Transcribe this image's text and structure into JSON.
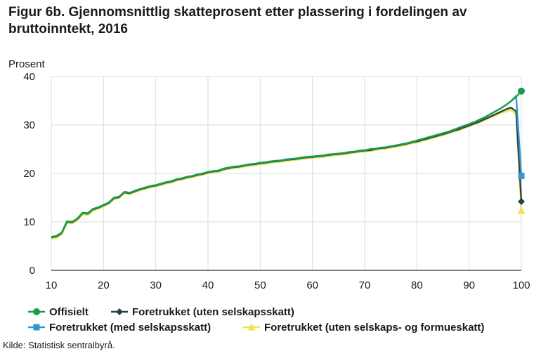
{
  "title": "Figur 6b. Gjennomsnittlig skatteprosent etter plassering i fordelingen av bruttoinntekt, 2016",
  "source": "Kilde: Statistisk sentralbyrå.",
  "chart_data": {
    "type": "line",
    "title": "Figur 6b. Gjennomsnittlig skatteprosent etter plassering i fordelingen av bruttoinntekt, 2016",
    "xlabel": "",
    "ylabel": "Prosent",
    "xlim": [
      10,
      100
    ],
    "ylim": [
      0,
      40
    ],
    "xticks": [
      10,
      20,
      30,
      40,
      50,
      60,
      70,
      80,
      90,
      100
    ],
    "yticks": [
      0,
      10,
      20,
      30,
      40
    ],
    "grid": true,
    "legend_position": "bottom",
    "x": [
      10,
      11,
      12,
      13,
      14,
      15,
      16,
      17,
      18,
      19,
      20,
      21,
      22,
      23,
      24,
      25,
      26,
      27,
      28,
      29,
      30,
      31,
      32,
      33,
      34,
      35,
      36,
      37,
      38,
      39,
      40,
      41,
      42,
      43,
      44,
      45,
      46,
      47,
      48,
      49,
      50,
      51,
      52,
      53,
      54,
      55,
      56,
      57,
      58,
      59,
      60,
      61,
      62,
      63,
      64,
      65,
      66,
      67,
      68,
      69,
      70,
      71,
      72,
      73,
      74,
      75,
      76,
      77,
      78,
      79,
      80,
      81,
      82,
      83,
      84,
      85,
      86,
      87,
      88,
      89,
      90,
      91,
      92,
      93,
      94,
      95,
      96,
      97,
      98,
      99,
      100
    ],
    "series": [
      {
        "name": "Offisielt",
        "color": "#1a9d49",
        "marker": "circle",
        "values": [
          6.9,
          7.1,
          7.8,
          10.1,
          10.0,
          10.7,
          11.9,
          11.8,
          12.7,
          13.0,
          13.5,
          14.0,
          15.0,
          15.2,
          16.2,
          16.0,
          16.4,
          16.8,
          17.1,
          17.4,
          17.6,
          17.9,
          18.2,
          18.4,
          18.8,
          19.0,
          19.3,
          19.5,
          19.8,
          20.0,
          20.3,
          20.5,
          20.6,
          21.0,
          21.2,
          21.4,
          21.5,
          21.7,
          21.9,
          22.0,
          22.2,
          22.3,
          22.5,
          22.6,
          22.7,
          22.9,
          23.0,
          23.1,
          23.3,
          23.4,
          23.5,
          23.6,
          23.7,
          23.9,
          24.0,
          24.1,
          24.2,
          24.4,
          24.5,
          24.7,
          24.8,
          25.0,
          25.1,
          25.3,
          25.4,
          25.6,
          25.8,
          26.0,
          26.2,
          26.5,
          26.8,
          27.1,
          27.4,
          27.7,
          28.0,
          28.3,
          28.6,
          29.0,
          29.4,
          29.8,
          30.2,
          30.6,
          31.1,
          31.6,
          32.2,
          32.8,
          33.4,
          34.1,
          34.9,
          35.8,
          37.0
        ]
      },
      {
        "name": "Foretrukket (uten selskapsskatt)",
        "color": "#274247",
        "marker": "diamond",
        "values": [
          6.8,
          7.0,
          7.7,
          10.0,
          9.9,
          10.6,
          11.8,
          11.7,
          12.6,
          12.9,
          13.4,
          13.9,
          14.9,
          15.1,
          16.1,
          15.9,
          16.3,
          16.7,
          17.0,
          17.3,
          17.5,
          17.8,
          18.1,
          18.3,
          18.7,
          18.9,
          19.2,
          19.4,
          19.7,
          19.9,
          20.2,
          20.4,
          20.5,
          20.9,
          21.1,
          21.3,
          21.4,
          21.6,
          21.8,
          21.9,
          22.1,
          22.2,
          22.4,
          22.5,
          22.6,
          22.8,
          22.9,
          23.0,
          23.2,
          23.3,
          23.4,
          23.5,
          23.6,
          23.8,
          23.9,
          24.0,
          24.1,
          24.3,
          24.4,
          24.6,
          24.7,
          24.8,
          25.0,
          25.2,
          25.3,
          25.5,
          25.7,
          25.9,
          26.1,
          26.4,
          26.6,
          26.9,
          27.2,
          27.5,
          27.8,
          28.1,
          28.4,
          28.8,
          29.1,
          29.5,
          29.9,
          30.3,
          30.7,
          31.2,
          31.7,
          32.2,
          32.7,
          33.2,
          33.6,
          32.8,
          14.2
        ]
      },
      {
        "name": "Foretrukket (med selskapsskatt)",
        "color": "#3396d2",
        "marker": "square",
        "values": [
          6.9,
          7.1,
          7.8,
          10.1,
          10.0,
          10.7,
          11.9,
          11.8,
          12.7,
          13.0,
          13.5,
          14.0,
          15.0,
          15.2,
          16.2,
          16.0,
          16.4,
          16.8,
          17.1,
          17.4,
          17.6,
          17.9,
          18.2,
          18.4,
          18.8,
          19.0,
          19.3,
          19.5,
          19.8,
          20.0,
          20.3,
          20.5,
          20.6,
          21.0,
          21.2,
          21.4,
          21.5,
          21.7,
          21.9,
          22.0,
          22.2,
          22.3,
          22.5,
          22.6,
          22.7,
          22.9,
          23.0,
          23.1,
          23.3,
          23.4,
          23.5,
          23.6,
          23.7,
          23.9,
          24.0,
          24.1,
          24.2,
          24.4,
          24.5,
          24.7,
          24.8,
          25.0,
          25.1,
          25.3,
          25.4,
          25.6,
          25.8,
          26.0,
          26.2,
          26.5,
          26.8,
          27.1,
          27.4,
          27.7,
          28.0,
          28.3,
          28.6,
          29.0,
          29.4,
          29.8,
          30.2,
          30.6,
          31.1,
          31.6,
          32.2,
          32.8,
          33.4,
          34.1,
          34.9,
          36.0,
          19.5
        ]
      },
      {
        "name": "Foretrukket (uten selskaps- og formueskatt)",
        "color": "#f2e34c",
        "marker": "triangle",
        "values": [
          6.5,
          6.7,
          7.4,
          9.8,
          9.7,
          10.4,
          11.5,
          11.4,
          12.3,
          12.7,
          13.2,
          13.7,
          14.7,
          14.9,
          15.9,
          15.7,
          16.1,
          16.5,
          16.8,
          17.1,
          17.3,
          17.6,
          17.9,
          18.1,
          18.5,
          18.7,
          19.0,
          19.2,
          19.5,
          19.7,
          20.0,
          20.2,
          20.3,
          20.7,
          20.9,
          21.1,
          21.2,
          21.4,
          21.6,
          21.7,
          21.9,
          22.0,
          22.2,
          22.3,
          22.4,
          22.6,
          22.7,
          22.8,
          23.0,
          23.1,
          23.2,
          23.3,
          23.4,
          23.6,
          23.7,
          23.8,
          23.9,
          24.1,
          24.2,
          24.4,
          24.5,
          24.6,
          24.8,
          25.0,
          25.1,
          25.3,
          25.5,
          25.7,
          25.9,
          26.2,
          26.4,
          26.7,
          27.0,
          27.3,
          27.6,
          27.9,
          28.2,
          28.6,
          28.9,
          29.3,
          29.7,
          30.1,
          30.5,
          31.0,
          31.4,
          31.9,
          32.4,
          32.8,
          33.1,
          32.2,
          12.3
        ]
      }
    ]
  }
}
